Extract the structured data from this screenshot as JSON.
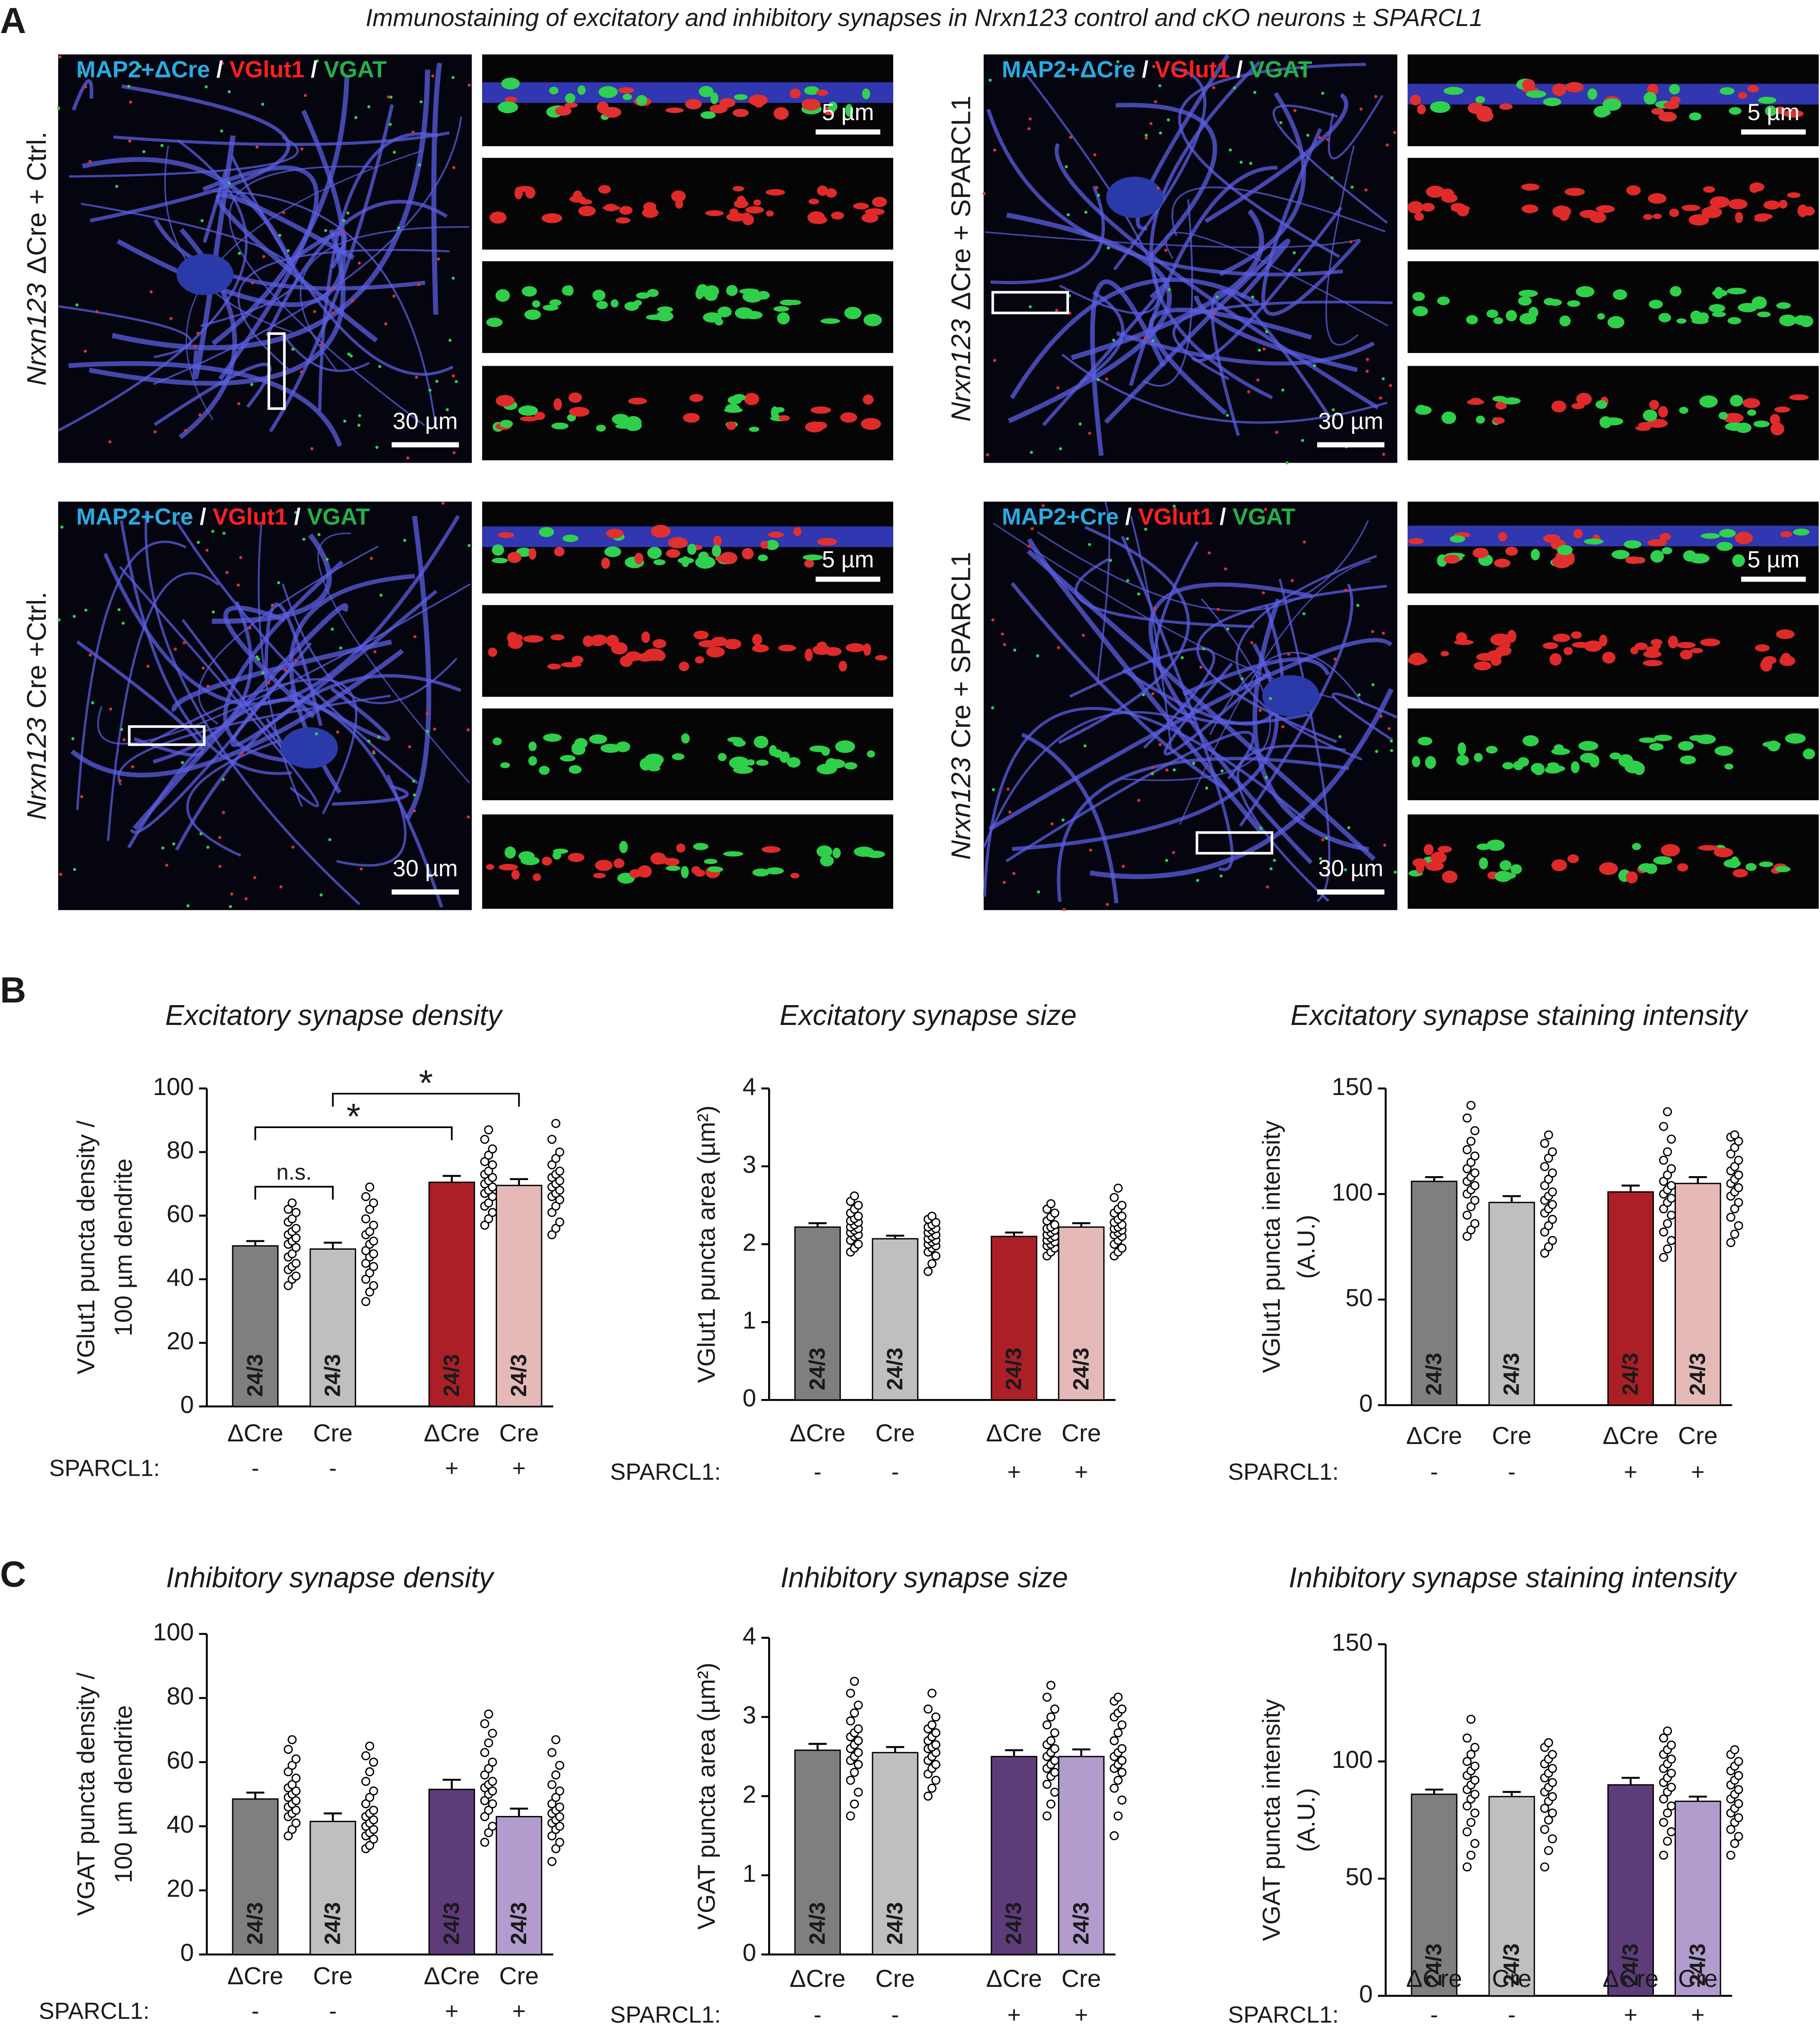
{
  "figure": {
    "panels": {
      "a": "A",
      "b": "B",
      "c": "C"
    },
    "title": "Immunostaining of excitatory and inhibitory synapses in Nrxn123 control and cKO neurons ± SPARCL1",
    "conditions": [
      {
        "gene": "Nrxn123",
        "label": "ΔCre + Ctrl.",
        "stain": [
          "MAP2+ΔCre",
          "/",
          "VGlut1",
          "/",
          "VGAT"
        ]
      },
      {
        "gene": "Nrxn123",
        "label": "ΔCre + SPARCL1",
        "stain": [
          "MAP2+ΔCre",
          "/",
          "VGlut1",
          "/",
          "VGAT"
        ]
      },
      {
        "gene": "Nrxn123",
        "label": "Cre +Ctrl.",
        "stain": [
          "MAP2+Cre",
          "/",
          "VGlut1",
          "/",
          "VGAT"
        ]
      },
      {
        "gene": "Nrxn123",
        "label": "Cre + SPARCL1",
        "stain": [
          "MAP2+Cre",
          "/",
          "VGlut1",
          "/",
          "VGAT"
        ]
      }
    ],
    "scale_small": "5 µm",
    "scale_large": "30 µm"
  },
  "chart_data": [
    {
      "type": "bar",
      "title": "Excitatory synapse density",
      "ylabel": [
        "VGlut1 puncta density /",
        "100 µm dendrite"
      ],
      "categories": [
        "ΔCre",
        "Cre",
        "ΔCre",
        "Cre"
      ],
      "group_label": "SPARCL1:",
      "group_values": [
        "-",
        "-",
        "+",
        "+"
      ],
      "values": [
        50.5,
        49.5,
        70.5,
        69.5
      ],
      "errors": [
        1.5,
        2,
        2,
        2
      ],
      "n_labels": [
        "24/3",
        "24/3",
        "24/3",
        "24/3"
      ],
      "colors": [
        "#7f7f7f",
        "#bfbfbf",
        "#ac1f27",
        "#e6b9b9"
      ],
      "points": [
        [
          38,
          40,
          41,
          43,
          44,
          45,
          47,
          48,
          50,
          51,
          52,
          53,
          54,
          55,
          56,
          58,
          59,
          61,
          62,
          64
        ],
        [
          33,
          36,
          38,
          40,
          42,
          44,
          45,
          47,
          48,
          49,
          51,
          52,
          54,
          55,
          57,
          59,
          62,
          64,
          66,
          69
        ],
        [
          57,
          59,
          61,
          63,
          64,
          66,
          67,
          68,
          69,
          70,
          71,
          72,
          73,
          74,
          76,
          77,
          79,
          81,
          84,
          87
        ],
        [
          54,
          56,
          58,
          61,
          63,
          65,
          66,
          67,
          68,
          69,
          70,
          71,
          72,
          73,
          74,
          76,
          78,
          80,
          84,
          89
        ]
      ],
      "ylim": [
        0,
        100
      ],
      "yticks": [
        0,
        20,
        40,
        60,
        80,
        100
      ],
      "annotations": [
        {
          "label": "n.s.",
          "bars": [
            0,
            1
          ]
        },
        {
          "label": "*",
          "bars": [
            0,
            2
          ]
        },
        {
          "label": "*",
          "bars": [
            1,
            3
          ]
        }
      ]
    },
    {
      "type": "bar",
      "title": "Excitatory synapse size",
      "ylabel": [
        "VGlut1 puncta area (µm²)"
      ],
      "categories": [
        "ΔCre",
        "Cre",
        "ΔCre",
        "Cre"
      ],
      "group_label": "SPARCL1:",
      "group_values": [
        "-",
        "-",
        "+",
        "+"
      ],
      "values": [
        2.22,
        2.07,
        2.1,
        2.22
      ],
      "errors": [
        0.05,
        0.04,
        0.05,
        0.05
      ],
      "n_labels": [
        "24/3",
        "24/3",
        "24/3",
        "24/3"
      ],
      "colors": [
        "#7f7f7f",
        "#bfbfbf",
        "#ac1f27",
        "#e6b9b9"
      ],
      "points": [
        [
          1.9,
          1.95,
          2.0,
          2.05,
          2.1,
          2.12,
          2.15,
          2.18,
          2.2,
          2.22,
          2.25,
          2.28,
          2.3,
          2.33,
          2.36,
          2.4,
          2.45,
          2.5,
          2.55,
          2.62
        ],
        [
          1.65,
          1.75,
          1.85,
          1.9,
          1.95,
          1.98,
          2.0,
          2.03,
          2.05,
          2.07,
          2.1,
          2.12,
          2.15,
          2.18,
          2.2,
          2.22,
          2.25,
          2.28,
          2.32,
          2.36
        ],
        [
          1.85,
          1.9,
          1.95,
          1.98,
          2.0,
          2.03,
          2.05,
          2.08,
          2.1,
          2.12,
          2.15,
          2.18,
          2.2,
          2.22,
          2.25,
          2.3,
          2.35,
          2.4,
          2.45,
          2.52
        ],
        [
          1.85,
          1.9,
          1.95,
          2.0,
          2.05,
          2.1,
          2.12,
          2.15,
          2.18,
          2.2,
          2.22,
          2.25,
          2.28,
          2.32,
          2.36,
          2.4,
          2.45,
          2.5,
          2.6,
          2.72
        ]
      ],
      "ylim": [
        0,
        4
      ],
      "yticks": [
        0,
        1,
        2,
        3,
        4
      ]
    },
    {
      "type": "bar",
      "title": "Excitatory synapse staining intensity",
      "ylabel": [
        "VGlut1 puncta intensity",
        "(A.U.)"
      ],
      "categories": [
        "ΔCre",
        "Cre",
        "ΔCre",
        "Cre"
      ],
      "group_label": "SPARCL1:",
      "group_values": [
        "-",
        "-",
        "+",
        "+"
      ],
      "values": [
        106,
        96,
        101,
        105
      ],
      "errors": [
        2,
        3,
        3,
        3
      ],
      "n_labels": [
        "24/3",
        "24/3",
        "24/3",
        "24/3"
      ],
      "colors": [
        "#7f7f7f",
        "#bfbfbf",
        "#ac1f27",
        "#e6b9b9"
      ],
      "points": [
        [
          80,
          83,
          86,
          90,
          94,
          97,
          100,
          102,
          104,
          106,
          108,
          110,
          112,
          115,
          118,
          121,
          125,
          130,
          136,
          142
        ],
        [
          72,
          75,
          78,
          82,
          85,
          88,
          91,
          93,
          95,
          97,
          99,
          101,
          104,
          107,
          110,
          113,
          117,
          120,
          124,
          128
        ],
        [
          70,
          74,
          78,
          82,
          86,
          90,
          93,
          96,
          98,
          100,
          102,
          104,
          106,
          109,
          112,
          116,
          120,
          126,
          132,
          139
        ],
        [
          77,
          81,
          85,
          89,
          93,
          96,
          99,
          101,
          103,
          105,
          107,
          109,
          111,
          113,
          116,
          119,
          122,
          125,
          127,
          128
        ]
      ],
      "ylim": [
        0,
        150
      ],
      "yticks": [
        0,
        50,
        100,
        150
      ]
    },
    {
      "type": "bar",
      "title": "Inhibitory synapse density",
      "ylabel": [
        "VGAT puncta density /",
        "100 µm dendrite"
      ],
      "categories": [
        "ΔCre",
        "Cre",
        "ΔCre",
        "Cre"
      ],
      "group_label": "SPARCL1:",
      "group_values": [
        "-",
        "-",
        "+",
        "+"
      ],
      "values": [
        48.5,
        41.5,
        51.5,
        43
      ],
      "errors": [
        2,
        2.5,
        3,
        2.5
      ],
      "n_labels": [
        "24/3",
        "24/3",
        "24/3",
        "24/3"
      ],
      "colors": [
        "#7f7f7f",
        "#bfbfbf",
        "#5e3c7a",
        "#b19ccd"
      ],
      "points": [
        [
          37,
          39,
          41,
          43,
          44,
          45,
          46,
          47,
          48,
          49,
          50,
          51,
          52,
          53,
          55,
          57,
          59,
          61,
          64,
          67
        ],
        [
          33,
          34,
          36,
          37,
          38,
          39,
          40,
          41,
          42,
          43,
          44,
          45,
          47,
          49,
          51,
          54,
          57,
          60,
          62,
          65
        ],
        [
          35,
          38,
          40,
          43,
          45,
          47,
          48,
          50,
          51,
          52,
          53,
          54,
          56,
          58,
          60,
          63,
          66,
          69,
          72,
          75
        ],
        [
          29,
          33,
          35,
          37,
          39,
          40,
          41,
          42,
          43,
          44,
          45,
          46,
          47,
          49,
          51,
          53,
          56,
          59,
          63,
          67
        ]
      ],
      "ylim": [
        0,
        100
      ],
      "yticks": [
        0,
        20,
        40,
        60,
        80,
        100
      ]
    },
    {
      "type": "bar",
      "title": "Inhibitory synapse size",
      "ylabel": [
        "VGAT puncta area (µm²)"
      ],
      "categories": [
        "ΔCre",
        "Cre",
        "ΔCre",
        "Cre"
      ],
      "group_label": "SPARCL1:",
      "group_values": [
        "-",
        "-",
        "+",
        "+"
      ],
      "values": [
        2.58,
        2.55,
        2.5,
        2.5
      ],
      "errors": [
        0.08,
        0.07,
        0.08,
        0.09
      ],
      "n_labels": [
        "24/3",
        "24/3",
        "24/3",
        "24/3"
      ],
      "colors": [
        "#7f7f7f",
        "#bfbfbf",
        "#5e3c7a",
        "#b19ccd"
      ],
      "points": [
        [
          1.75,
          1.9,
          2.05,
          2.2,
          2.3,
          2.4,
          2.45,
          2.5,
          2.55,
          2.6,
          2.65,
          2.7,
          2.75,
          2.8,
          2.85,
          2.95,
          3.05,
          3.15,
          3.3,
          3.45
        ],
        [
          2.0,
          2.1,
          2.2,
          2.28,
          2.35,
          2.4,
          2.45,
          2.5,
          2.55,
          2.6,
          2.62,
          2.65,
          2.7,
          2.75,
          2.8,
          2.85,
          2.9,
          3.0,
          3.1,
          3.3
        ],
        [
          1.75,
          1.9,
          2.05,
          2.15,
          2.25,
          2.3,
          2.35,
          2.4,
          2.45,
          2.5,
          2.55,
          2.6,
          2.65,
          2.7,
          2.8,
          2.9,
          3.0,
          3.1,
          3.25,
          3.4
        ],
        [
          1.5,
          1.75,
          1.95,
          2.1,
          2.2,
          2.3,
          2.35,
          2.4,
          2.45,
          2.5,
          2.55,
          2.6,
          2.7,
          2.8,
          2.9,
          3.0,
          3.05,
          3.1,
          3.2,
          3.25
        ]
      ],
      "ylim": [
        0,
        4
      ],
      "yticks": [
        0,
        1,
        2,
        3,
        4
      ]
    },
    {
      "type": "bar",
      "title": "Inhibitory synapse staining intensity",
      "ylabel": [
        "VGAT puncta intensity",
        "(A.U.)"
      ],
      "categories": [
        "ΔCre",
        "Cre",
        "ΔCre",
        "Cre"
      ],
      "group_label": "SPARCL1:",
      "group_values": [
        "-",
        "-",
        "+",
        "+"
      ],
      "values": [
        86,
        85,
        90,
        83
      ],
      "errors": [
        2,
        2,
        3,
        2
      ],
      "n_labels": [
        "24/3",
        "24/3",
        "24/3",
        "24/3"
      ],
      "colors": [
        "#7f7f7f",
        "#bfbfbf",
        "#5e3c7a",
        "#b19ccd"
      ],
      "points": [
        [
          55,
          60,
          65,
          70,
          74,
          78,
          81,
          84,
          86,
          88,
          90,
          92,
          94,
          96,
          98,
          100,
          103,
          106,
          110,
          118
        ],
        [
          55,
          62,
          67,
          71,
          75,
          78,
          80,
          83,
          85,
          87,
          89,
          91,
          93,
          95,
          97,
          99,
          101,
          103,
          106,
          108
        ],
        [
          60,
          66,
          70,
          74,
          78,
          81,
          84,
          87,
          89,
          91,
          93,
          95,
          97,
          99,
          101,
          103,
          105,
          107,
          110,
          113
        ],
        [
          60,
          65,
          68,
          71,
          74,
          76,
          78,
          80,
          82,
          84,
          86,
          88,
          90,
          92,
          94,
          96,
          98,
          100,
          103,
          105
        ]
      ],
      "ylim": [
        0,
        150
      ],
      "yticks": [
        0,
        50,
        100,
        150
      ]
    }
  ]
}
